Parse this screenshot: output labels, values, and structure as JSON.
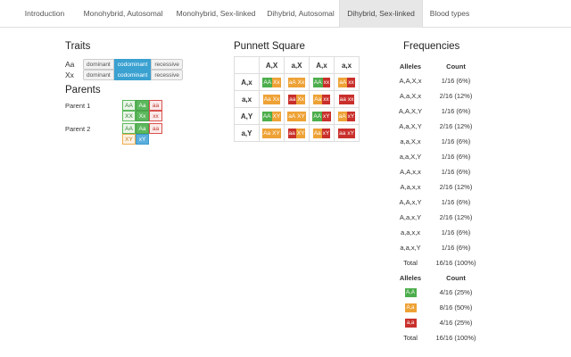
{
  "tabs": [
    {
      "label": "Introduction"
    },
    {
      "label": "Monohybrid, Autosomal"
    },
    {
      "label": "Monohybrid, Sex-linked"
    },
    {
      "label": "Dihybrid, Autosomal"
    },
    {
      "label": "Dihybrid, Sex-linked"
    },
    {
      "label": "Blood types"
    }
  ],
  "active_tab": "Dihybrid, Sex-linked",
  "traits": {
    "title": "Traits",
    "rows": [
      {
        "label": "Aa",
        "options": [
          "dominant",
          "codominant",
          "recessive"
        ],
        "selected": "codominant"
      },
      {
        "label": "Xx",
        "options": [
          "dominant",
          "codominant",
          "recessive"
        ],
        "selected": "codominant"
      }
    ]
  },
  "parents": {
    "title": "Parents",
    "p1_label": "Parent 1",
    "p2_label": "Parent 2",
    "p1": [
      [
        "AA",
        "Aa",
        "aa"
      ],
      [
        "XX",
        "Xx",
        "xx"
      ]
    ],
    "p2": [
      [
        "AA",
        "Aa",
        "aa"
      ],
      [
        "XY",
        "xY"
      ]
    ]
  },
  "punnett": {
    "title": "Punnett Square",
    "col_headers": [
      "A,X",
      "a,X",
      "A,x",
      "a,x"
    ],
    "rows": [
      {
        "header": "A,x",
        "cells": [
          [
            "AA",
            "Xx"
          ],
          [
            "aA",
            "Xx"
          ],
          [
            "AA",
            "xx"
          ],
          [
            "aA",
            "xx"
          ]
        ]
      },
      {
        "header": "a,x",
        "cells": [
          [
            "Aa",
            "Xx"
          ],
          [
            "aa",
            "Xx"
          ],
          [
            "Aa",
            "xx"
          ],
          [
            "aa",
            "xx"
          ]
        ]
      },
      {
        "header": "A,Y",
        "cells": [
          [
            "AA",
            "XY"
          ],
          [
            "aA",
            "XY"
          ],
          [
            "AA",
            "xY"
          ],
          [
            "aA",
            "xY"
          ]
        ]
      },
      {
        "header": "a,Y",
        "cells": [
          [
            "Aa",
            "XY"
          ],
          [
            "aa",
            "XY"
          ],
          [
            "Aa",
            "xY"
          ],
          [
            "aa",
            "xY"
          ]
        ]
      }
    ]
  },
  "frequencies": {
    "title": "Frequencies",
    "genotype_header": [
      "Alleles",
      "Count"
    ],
    "genotypes": [
      [
        "A,A,X,x",
        "1/16 (6%)"
      ],
      [
        "A,a,X,x",
        "2/16 (12%)"
      ],
      [
        "A,A,X,Y",
        "1/16 (6%)"
      ],
      [
        "A,a,X,Y",
        "2/16 (12%)"
      ],
      [
        "a,a,X,x",
        "1/16 (6%)"
      ],
      [
        "a,a,X,Y",
        "1/16 (6%)"
      ],
      [
        "A,A,x,x",
        "1/16 (6%)"
      ],
      [
        "A,a,x,x",
        "2/16 (12%)"
      ],
      [
        "A,A,x,Y",
        "1/16 (6%)"
      ],
      [
        "A,a,x,Y",
        "2/16 (12%)"
      ],
      [
        "a,a,x,x",
        "1/16 (6%)"
      ],
      [
        "a,a,x,Y",
        "1/16 (6%)"
      ]
    ],
    "genotype_total": [
      "Total",
      "16/16 (100%)"
    ],
    "phenotype_header": [
      "Alleles",
      "Count"
    ],
    "phenotypes": [
      {
        "label": "A,A",
        "count": "4/16 (25%)",
        "color": "#4cae4c"
      },
      {
        "label": "A,a",
        "count": "8/16 (50%)",
        "color": "#eea236"
      },
      {
        "label": "a,a",
        "count": "4/16 (25%)",
        "color": "#c9302c"
      }
    ],
    "phenotype_total": [
      "Total",
      "16/16 (100%)"
    ]
  }
}
